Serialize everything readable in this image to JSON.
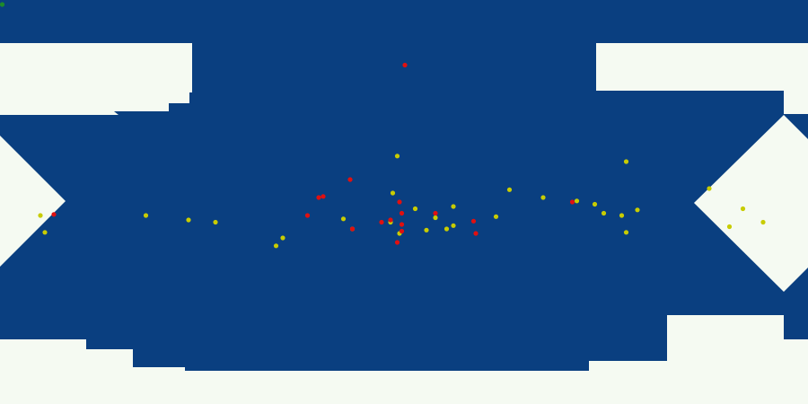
{
  "map": {
    "colors": {
      "background": "#f5faf2",
      "water": "#0a3f80",
      "red_marker": "#e01010",
      "yellow_marker": "#c8cc00",
      "green_marker": "#1e8a2a"
    },
    "markers": {
      "red": [
        {
          "lon": 0.4,
          "lat": 61
        },
        {
          "lon": -156,
          "lat": -5.5
        },
        {
          "lon": -43,
          "lat": -6
        },
        {
          "lon": -38,
          "lat": 2
        },
        {
          "lon": -36,
          "lat": 2.5
        },
        {
          "lon": -24,
          "lat": 10
        },
        {
          "lon": -23,
          "lat": -12
        },
        {
          "lon": -10,
          "lat": -9
        },
        {
          "lon": -6,
          "lat": -8
        },
        {
          "lon": -3,
          "lat": -18
        },
        {
          "lon": -1,
          "lat": -5
        },
        {
          "lon": -1,
          "lat": -13
        },
        {
          "lon": -1,
          "lat": -10
        },
        {
          "lon": -2,
          "lat": 0
        },
        {
          "lon": 14,
          "lat": -5
        },
        {
          "lon": 31,
          "lat": -8.5
        },
        {
          "lon": 32,
          "lat": -14
        },
        {
          "lon": 75,
          "lat": 0
        }
      ],
      "yellow": [
        {
          "lon": -3,
          "lat": 20.5
        },
        {
          "lon": -162,
          "lat": -6
        },
        {
          "lon": -160,
          "lat": -13.5
        },
        {
          "lon": -115,
          "lat": -6
        },
        {
          "lon": -96,
          "lat": -8
        },
        {
          "lon": -84,
          "lat": -9
        },
        {
          "lon": -54,
          "lat": -16
        },
        {
          "lon": -57,
          "lat": -19.5
        },
        {
          "lon": -27,
          "lat": -7.5
        },
        {
          "lon": -23,
          "lat": -12
        },
        {
          "lon": -6,
          "lat": -9
        },
        {
          "lon": -5,
          "lat": 4
        },
        {
          "lon": -2,
          "lat": -14
        },
        {
          "lon": 5,
          "lat": -3
        },
        {
          "lon": 10,
          "lat": -12.5
        },
        {
          "lon": 14,
          "lat": -7
        },
        {
          "lon": 19,
          "lat": -12
        },
        {
          "lon": 22,
          "lat": -10.5
        },
        {
          "lon": 22,
          "lat": -2
        },
        {
          "lon": 41,
          "lat": -6.5
        },
        {
          "lon": 47,
          "lat": 5.5
        },
        {
          "lon": 62,
          "lat": 2
        },
        {
          "lon": 77,
          "lat": 0.5
        },
        {
          "lon": 85,
          "lat": -1
        },
        {
          "lon": 89,
          "lat": -5
        },
        {
          "lon": 97,
          "lat": -6
        },
        {
          "lon": 99,
          "lat": 18
        },
        {
          "lon": 104,
          "lat": -3.5
        },
        {
          "lon": 99,
          "lat": -13.5
        },
        {
          "lon": 136,
          "lat": 6
        },
        {
          "lon": 145,
          "lat": -11
        },
        {
          "lon": 151,
          "lat": -3
        },
        {
          "lon": 160,
          "lat": -9
        }
      ],
      "green": [
        {
          "lon": -179,
          "lat": 88
        }
      ]
    }
  }
}
